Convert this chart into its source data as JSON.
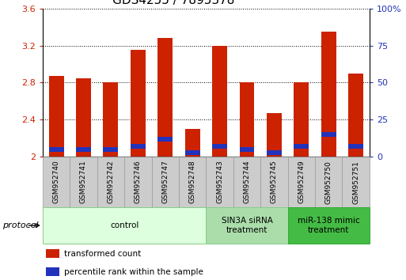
{
  "title": "GDS4255 / 7895378",
  "samples": [
    "GSM952740",
    "GSM952741",
    "GSM952742",
    "GSM952746",
    "GSM952747",
    "GSM952748",
    "GSM952743",
    "GSM952744",
    "GSM952745",
    "GSM952749",
    "GSM952750",
    "GSM952751"
  ],
  "transformed_counts": [
    2.87,
    2.85,
    2.8,
    3.15,
    3.28,
    2.3,
    3.2,
    2.8,
    2.47,
    2.8,
    3.35,
    2.9
  ],
  "percentile_ranks": [
    5,
    5,
    5,
    7,
    12,
    3,
    7,
    5,
    3,
    7,
    15,
    7
  ],
  "bar_color_red": "#cc2200",
  "bar_color_blue": "#2233bb",
  "ylim": [
    2.0,
    3.6
  ],
  "yticks": [
    2.0,
    2.4,
    2.8,
    3.2,
    3.6
  ],
  "ytick_labels_left": [
    "2",
    "2.4",
    "2.8",
    "3.2",
    "3.6"
  ],
  "right_yticks": [
    0,
    25,
    50,
    75,
    100
  ],
  "right_ytick_labels": [
    "0",
    "25",
    "50",
    "75",
    "100%"
  ],
  "groups": [
    {
      "label": "control",
      "start": 0,
      "end": 6,
      "color": "#ddffdd",
      "edge_color": "#88cc88"
    },
    {
      "label": "SIN3A siRNA\ntreatment",
      "start": 6,
      "end": 9,
      "color": "#aaddaa",
      "edge_color": "#88cc88"
    },
    {
      "label": "miR-138 mimic\ntreatment",
      "start": 9,
      "end": 12,
      "color": "#44bb44",
      "edge_color": "#33aa33"
    }
  ],
  "protocol_label": "protocol",
  "legend_red_label": "transformed count",
  "legend_blue_label": "percentile rank within the sample",
  "title_fontsize": 11,
  "tick_label_fontsize": 6.5,
  "axis_label_color_left": "#cc2200",
  "axis_label_color_right": "#2233bb",
  "sample_box_color": "#cccccc",
  "sample_box_edge": "#999999"
}
